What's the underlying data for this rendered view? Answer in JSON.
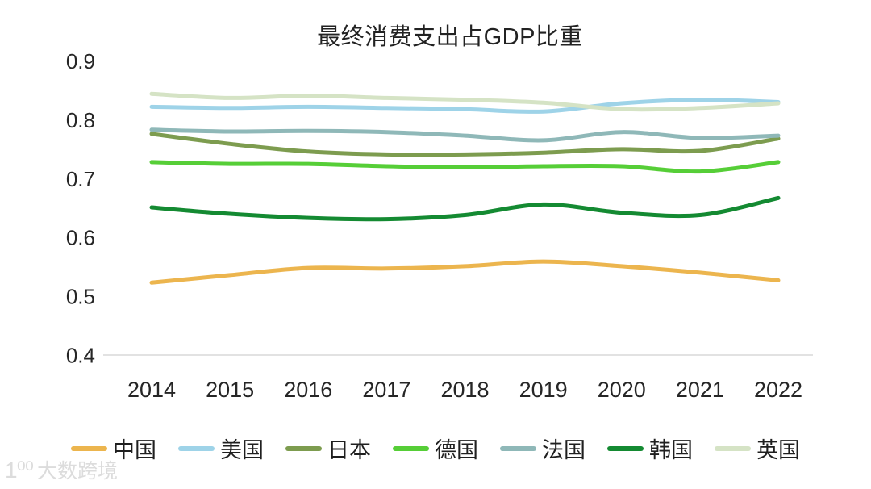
{
  "watermark": {
    "logo": "1⁰⁰",
    "text": "大数跨境"
  },
  "chart_data": {
    "type": "line",
    "title": "最终消费支出占GDP比重",
    "x": [
      2014,
      2015,
      2016,
      2017,
      2018,
      2019,
      2020,
      2021,
      2022
    ],
    "y_ticks": [
      0.9,
      0.8,
      0.7,
      0.6,
      0.5,
      0.4
    ],
    "ylim": [
      0.4,
      0.95
    ],
    "grid": false,
    "legend_position": "bottom",
    "axis_color": "#d9d9d9",
    "text_color": "#262626",
    "series": [
      {
        "id": "china",
        "name": "中国",
        "color": "#ECB54E",
        "values": [
          0.523,
          0.536,
          0.548,
          0.547,
          0.551,
          0.559,
          0.551,
          0.54,
          0.527
        ]
      },
      {
        "id": "usa",
        "name": "美国",
        "color": "#9ED3E8",
        "values": [
          0.822,
          0.82,
          0.822,
          0.82,
          0.818,
          0.814,
          0.828,
          0.834,
          0.83
        ]
      },
      {
        "id": "japan",
        "name": "日本",
        "color": "#7D9C4F",
        "values": [
          0.776,
          0.759,
          0.746,
          0.741,
          0.741,
          0.744,
          0.75,
          0.747,
          0.768
        ]
      },
      {
        "id": "germany",
        "name": "德国",
        "color": "#56CE37",
        "values": [
          0.728,
          0.725,
          0.725,
          0.721,
          0.719,
          0.721,
          0.721,
          0.712,
          0.728
        ]
      },
      {
        "id": "france",
        "name": "法国",
        "color": "#8FB8B8",
        "values": [
          0.783,
          0.78,
          0.781,
          0.779,
          0.773,
          0.765,
          0.779,
          0.769,
          0.773
        ]
      },
      {
        "id": "korea",
        "name": "韩国",
        "color": "#148A32",
        "values": [
          0.651,
          0.64,
          0.633,
          0.631,
          0.638,
          0.656,
          0.642,
          0.638,
          0.667
        ]
      },
      {
        "id": "uk",
        "name": "英国",
        "color": "#D5E3C5",
        "values": [
          0.844,
          0.837,
          0.841,
          0.837,
          0.834,
          0.829,
          0.818,
          0.82,
          0.828
        ]
      }
    ]
  }
}
